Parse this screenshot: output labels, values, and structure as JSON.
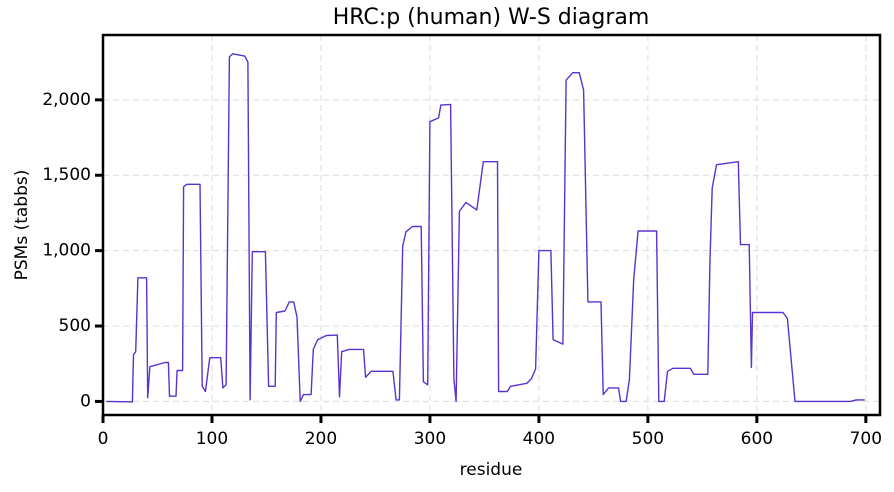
{
  "chart_data": {
    "type": "line",
    "title": "HRC:p (human) W-S diagram",
    "x_label": "residue",
    "y_label": "PSMs (tabbs)",
    "color": "#5b32d2",
    "grid": true,
    "x": [
      3,
      27,
      28,
      30,
      32,
      40,
      41,
      43,
      57,
      60,
      61,
      67,
      68,
      73,
      74,
      77,
      89,
      91,
      94,
      98,
      108,
      110,
      113,
      116,
      119,
      130,
      133,
      135,
      137,
      149,
      152,
      158,
      159,
      167,
      171,
      175,
      178,
      181,
      184,
      191,
      193,
      197,
      205,
      215,
      217,
      219,
      226,
      239,
      241,
      246,
      266,
      269,
      272,
      275,
      278,
      284,
      292,
      294,
      298,
      300,
      308,
      310,
      319,
      322,
      324,
      327,
      333,
      339,
      343,
      349,
      362,
      363,
      371,
      374,
      389,
      393,
      397,
      400,
      411,
      413,
      422,
      425,
      431,
      437,
      441,
      445,
      457,
      459,
      464,
      473,
      475,
      480,
      483,
      487,
      491,
      508,
      510,
      515,
      518,
      523,
      539,
      542,
      555,
      557,
      559,
      563,
      583,
      585,
      593,
      595,
      596,
      624,
      628,
      635,
      686,
      691,
      699
    ],
    "values": [
      0,
      -3,
      311,
      330,
      820,
      820,
      25,
      230,
      258,
      258,
      35,
      35,
      205,
      205,
      1424,
      1440,
      1440,
      100,
      66,
      290,
      290,
      90,
      110,
      2285,
      2305,
      2290,
      2250,
      10,
      993,
      993,
      100,
      100,
      590,
      600,
      660,
      660,
      560,
      0,
      45,
      45,
      345,
      410,
      437,
      440,
      30,
      330,
      345,
      345,
      160,
      200,
      200,
      10,
      10,
      1030,
      1125,
      1160,
      1160,
      130,
      110,
      1855,
      1880,
      1965,
      1970,
      145,
      0,
      1260,
      1320,
      1290,
      1270,
      1590,
      1590,
      66,
      66,
      100,
      120,
      150,
      215,
      1000,
      1000,
      410,
      380,
      2130,
      2180,
      2180,
      2065,
      660,
      660,
      45,
      90,
      90,
      0,
      0,
      145,
      810,
      1130,
      1130,
      0,
      0,
      200,
      220,
      220,
      180,
      180,
      940,
      1415,
      1570,
      1590,
      1040,
      1040,
      225,
      590,
      590,
      550,
      0,
      0,
      10,
      10
    ],
    "xlim": [
      0,
      713
    ],
    "ylim": [
      -90,
      2430
    ],
    "xticks": [
      0,
      100,
      200,
      300,
      400,
      500,
      600,
      700
    ],
    "yticks": [
      0,
      500,
      {
        "value": 1000,
        "label": "1,000"
      },
      {
        "value": 1500,
        "label": "1,500"
      },
      {
        "value": 2000,
        "label": "2,000"
      }
    ]
  }
}
